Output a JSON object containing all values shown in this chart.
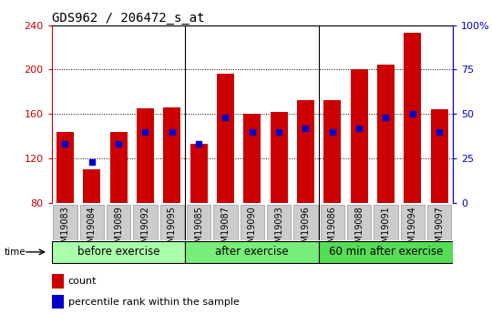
{
  "title": "GDS962 / 206472_s_at",
  "samples": [
    "GSM19083",
    "GSM19084",
    "GSM19089",
    "GSM19092",
    "GSM19095",
    "GSM19085",
    "GSM19087",
    "GSM19090",
    "GSM19093",
    "GSM19096",
    "GSM19086",
    "GSM19088",
    "GSM19091",
    "GSM19094",
    "GSM19097"
  ],
  "counts": [
    144,
    110,
    144,
    165,
    166,
    133,
    196,
    160,
    162,
    172,
    172,
    200,
    204,
    233,
    164
  ],
  "percentile_ranks": [
    33,
    23,
    33,
    40,
    40,
    33,
    48,
    40,
    40,
    42,
    40,
    42,
    48,
    50,
    40
  ],
  "groups": [
    {
      "label": "before exercise",
      "start": 0,
      "end": 5,
      "color": "#aaffaa"
    },
    {
      "label": "after exercise",
      "start": 5,
      "end": 10,
      "color": "#77ee77"
    },
    {
      "label": "60 min after exercise",
      "start": 10,
      "end": 15,
      "color": "#55dd55"
    }
  ],
  "bar_color": "#cc0000",
  "percentile_color": "#0000cc",
  "ymin": 80,
  "ymax": 240,
  "yticks": [
    80,
    120,
    160,
    200,
    240
  ],
  "y2min": 0,
  "y2max": 100,
  "y2ticks": [
    0,
    25,
    50,
    75,
    100
  ],
  "y2tick_labels": [
    "0",
    "25",
    "50",
    "75",
    "100%"
  ],
  "bar_width": 0.65,
  "title_fontsize": 10,
  "tick_fontsize": 8,
  "xlabel_fontsize": 7,
  "legend_fontsize": 8,
  "group_label_fontsize": 8.5
}
